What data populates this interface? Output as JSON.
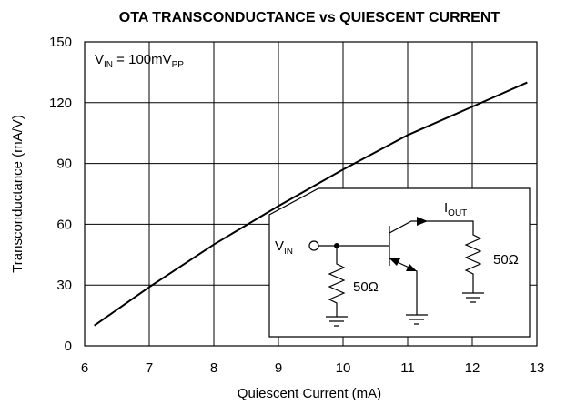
{
  "chart_data": {
    "type": "line",
    "title": "OTA TRANSCONDUCTANCE vs QUIESCENT CURRENT",
    "x_label": "Quiescent Current (mA)",
    "y_label": "Transconductance (mA/V)",
    "annotation": [
      {
        "text": "V",
        "sub": "IN"
      },
      {
        "text": " = 100mV",
        "sub": "PP"
      }
    ],
    "inset_labels": {
      "input": {
        "text": "V",
        "sub": "IN"
      },
      "output": {
        "text": "I",
        "sub": "OUT"
      },
      "resistors": [
        "50Ω",
        "50Ω"
      ]
    },
    "x": [
      6.15,
      7,
      8,
      9,
      10,
      11,
      12,
      12.85
    ],
    "series": [
      {
        "color": "#000000",
        "values": [
          10,
          29,
          50,
          69,
          87,
          104,
          118,
          130
        ]
      }
    ],
    "xlim": [
      6,
      13
    ],
    "xticks": [
      6,
      7,
      8,
      9,
      10,
      11,
      12,
      13
    ],
    "ylim": [
      0,
      150
    ],
    "yticks": [
      0,
      30,
      60,
      90,
      120,
      150
    ],
    "grid": true
  }
}
